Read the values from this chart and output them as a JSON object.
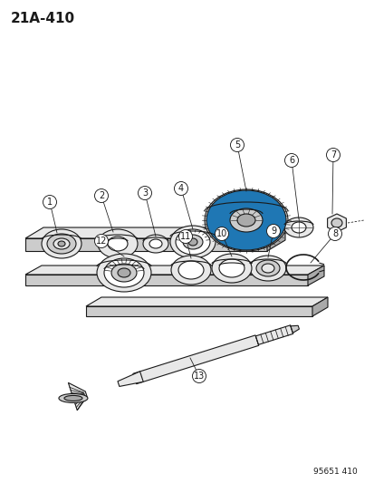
{
  "page_label": "21A-410",
  "footer": "95651 410",
  "bg_color": "#ffffff",
  "lc": "#1a1a1a",
  "lw": 0.8,
  "title_fontsize": 11,
  "label_fontsize": 7,
  "footer_fontsize": 6.5
}
